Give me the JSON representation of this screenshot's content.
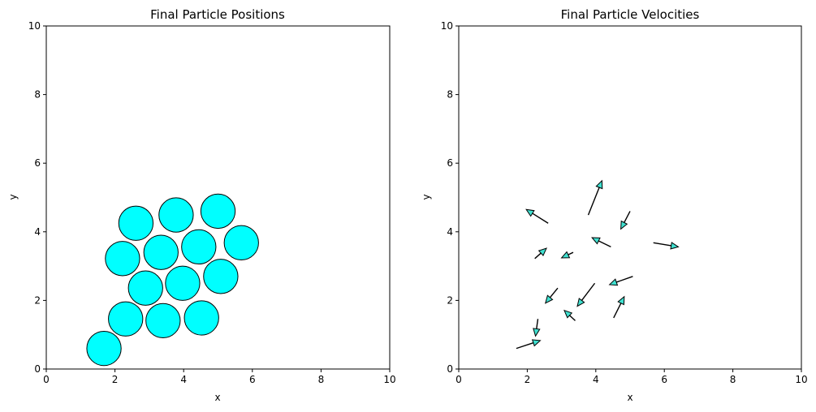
{
  "chart_data": [
    {
      "type": "scatter",
      "title": "Final Particle Positions",
      "xlabel": "x",
      "ylabel": "y",
      "xlim": [
        0,
        10
      ],
      "ylim": [
        0,
        10
      ],
      "xticks": [
        "0",
        "2",
        "4",
        "6",
        "8",
        "10"
      ],
      "yticks": [
        "0",
        "2",
        "4",
        "6",
        "8",
        "10"
      ],
      "marker": "circle",
      "particle_radius": 0.5,
      "fill_color": "#00ffff",
      "edge_color": "#000000",
      "points": [
        {
          "x": 1.68,
          "y": 0.6
        },
        {
          "x": 2.31,
          "y": 1.46
        },
        {
          "x": 3.4,
          "y": 1.41
        },
        {
          "x": 4.52,
          "y": 1.49
        },
        {
          "x": 2.89,
          "y": 2.36
        },
        {
          "x": 3.97,
          "y": 2.5
        },
        {
          "x": 5.08,
          "y": 2.7
        },
        {
          "x": 2.22,
          "y": 3.22
        },
        {
          "x": 3.34,
          "y": 3.4
        },
        {
          "x": 4.44,
          "y": 3.56
        },
        {
          "x": 5.68,
          "y": 3.68
        },
        {
          "x": 2.61,
          "y": 4.25
        },
        {
          "x": 3.78,
          "y": 4.49
        },
        {
          "x": 5.0,
          "y": 4.6
        }
      ]
    },
    {
      "type": "quiver",
      "title": "Final Particle Velocities",
      "xlabel": "x",
      "ylabel": "y",
      "xlim": [
        0,
        10
      ],
      "ylim": [
        0,
        10
      ],
      "xticks": [
        "0",
        "2",
        "4",
        "6",
        "8",
        "10"
      ],
      "yticks": [
        "0",
        "2",
        "4",
        "6",
        "8",
        "10"
      ],
      "arrow_color": "#000000",
      "head_fill": "#40e0d0",
      "arrows": [
        {
          "x": 1.68,
          "y": 0.6,
          "u": 0.7,
          "v": 0.23
        },
        {
          "x": 2.31,
          "y": 1.46,
          "u": -0.07,
          "v": -0.5
        },
        {
          "x": 3.4,
          "y": 1.41,
          "u": -0.32,
          "v": 0.3
        },
        {
          "x": 4.52,
          "y": 1.49,
          "u": 0.31,
          "v": 0.62
        },
        {
          "x": 2.89,
          "y": 2.36,
          "u": -0.36,
          "v": -0.44
        },
        {
          "x": 3.97,
          "y": 2.5,
          "u": -0.51,
          "v": -0.67
        },
        {
          "x": 5.08,
          "y": 2.7,
          "u": -0.68,
          "v": -0.24
        },
        {
          "x": 2.22,
          "y": 3.22,
          "u": 0.34,
          "v": 0.3
        },
        {
          "x": 3.34,
          "y": 3.4,
          "u": -0.34,
          "v": -0.16
        },
        {
          "x": 4.44,
          "y": 3.56,
          "u": -0.55,
          "v": 0.27
        },
        {
          "x": 5.68,
          "y": 3.68,
          "u": 0.73,
          "v": -0.12
        },
        {
          "x": 2.61,
          "y": 4.25,
          "u": -0.64,
          "v": 0.4
        },
        {
          "x": 3.78,
          "y": 4.49,
          "u": 0.4,
          "v": 1.0
        },
        {
          "x": 5.0,
          "y": 4.6,
          "u": -0.27,
          "v": -0.52
        }
      ]
    }
  ]
}
